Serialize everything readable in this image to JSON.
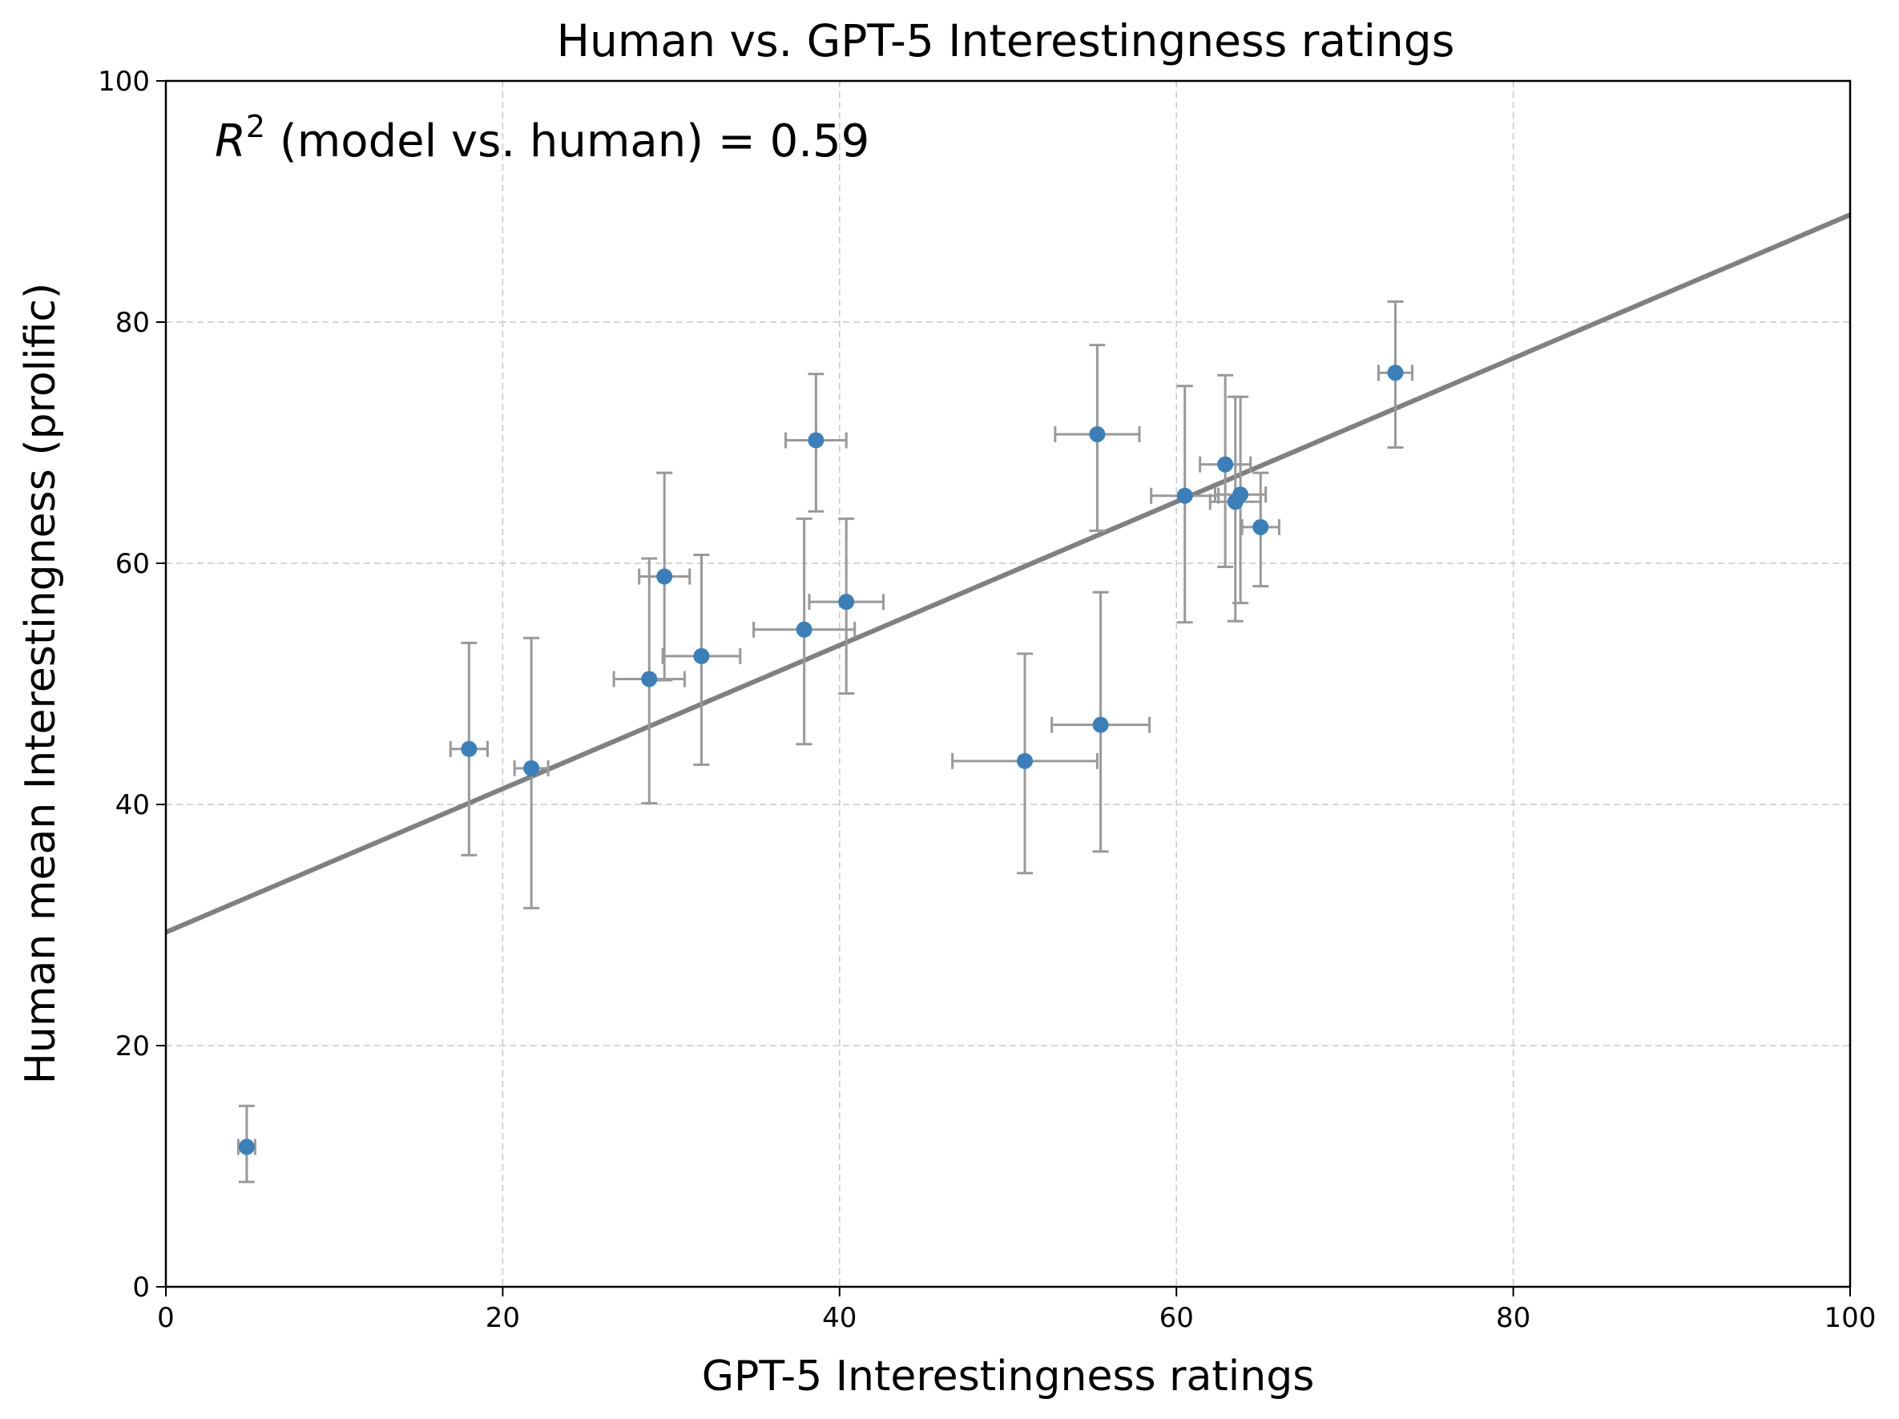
{
  "chart_data": {
    "type": "scatter",
    "title": "Human vs. GPT-5 Interestingness ratings",
    "xlabel": "GPT-5 Interestingness ratings",
    "ylabel": "Human mean Interestingness (prolific)",
    "xlim": [
      0,
      100
    ],
    "ylim": [
      0,
      100
    ],
    "x_ticks": [
      "0",
      "20",
      "40",
      "60",
      "80",
      "100"
    ],
    "y_ticks": [
      "0",
      "20",
      "40",
      "60",
      "80",
      "100"
    ],
    "grid": true,
    "annotation": {
      "symbol": "R",
      "superscript": "2",
      "text": " (model vs. human) = 0.59"
    },
    "fit_line": {
      "x": [
        0,
        100
      ],
      "y": [
        29.4,
        88.9
      ],
      "color": "#808080"
    },
    "colors": {
      "points": "#3a7fba",
      "errorbars": "#999999",
      "grid": "#c8c8c8"
    },
    "points": [
      {
        "x": 4.8,
        "y": 11.6,
        "xerr": 0.5,
        "yerr_low": 2.9,
        "yerr_high": 3.4
      },
      {
        "x": 18.0,
        "y": 44.6,
        "xerr": 1.1,
        "yerr_low": 8.8,
        "yerr_high": 8.8
      },
      {
        "x": 21.7,
        "y": 43.0,
        "xerr": 1.0,
        "yerr_low": 11.6,
        "yerr_high": 10.8
      },
      {
        "x": 28.7,
        "y": 50.4,
        "xerr": 2.1,
        "yerr_low": 10.3,
        "yerr_high": 10.0
      },
      {
        "x": 29.6,
        "y": 58.9,
        "xerr": 1.5,
        "yerr_low": 8.6,
        "yerr_high": 8.6
      },
      {
        "x": 31.8,
        "y": 52.3,
        "xerr": 2.3,
        "yerr_low": 9.0,
        "yerr_high": 8.4
      },
      {
        "x": 37.9,
        "y": 54.5,
        "xerr": 3.0,
        "yerr_low": 9.5,
        "yerr_high": 9.2
      },
      {
        "x": 38.6,
        "y": 70.2,
        "xerr": 1.8,
        "yerr_low": 5.9,
        "yerr_high": 5.5
      },
      {
        "x": 40.4,
        "y": 56.8,
        "xerr": 2.2,
        "yerr_low": 7.6,
        "yerr_high": 6.9
      },
      {
        "x": 51.0,
        "y": 43.6,
        "xerr": 4.3,
        "yerr_low": 9.3,
        "yerr_high": 8.9
      },
      {
        "x": 55.3,
        "y": 70.7,
        "xerr": 2.5,
        "yerr_low": 8.0,
        "yerr_high": 7.4
      },
      {
        "x": 55.5,
        "y": 46.6,
        "xerr": 2.9,
        "yerr_low": 10.5,
        "yerr_high": 11.0
      },
      {
        "x": 60.5,
        "y": 65.6,
        "xerr": 2.0,
        "yerr_low": 10.5,
        "yerr_high": 9.1
      },
      {
        "x": 62.9,
        "y": 68.2,
        "xerr": 1.5,
        "yerr_low": 8.5,
        "yerr_high": 7.4
      },
      {
        "x": 63.5,
        "y": 65.1,
        "xerr": 1.5,
        "yerr_low": 9.9,
        "yerr_high": 8.7
      },
      {
        "x": 63.8,
        "y": 65.7,
        "xerr": 1.5,
        "yerr_low": 9.0,
        "yerr_high": 8.1
      },
      {
        "x": 65.0,
        "y": 63.0,
        "xerr": 1.1,
        "yerr_low": 4.9,
        "yerr_high": 4.5
      },
      {
        "x": 73.0,
        "y": 75.8,
        "xerr": 1.0,
        "yerr_low": 6.2,
        "yerr_high": 5.9
      }
    ]
  }
}
